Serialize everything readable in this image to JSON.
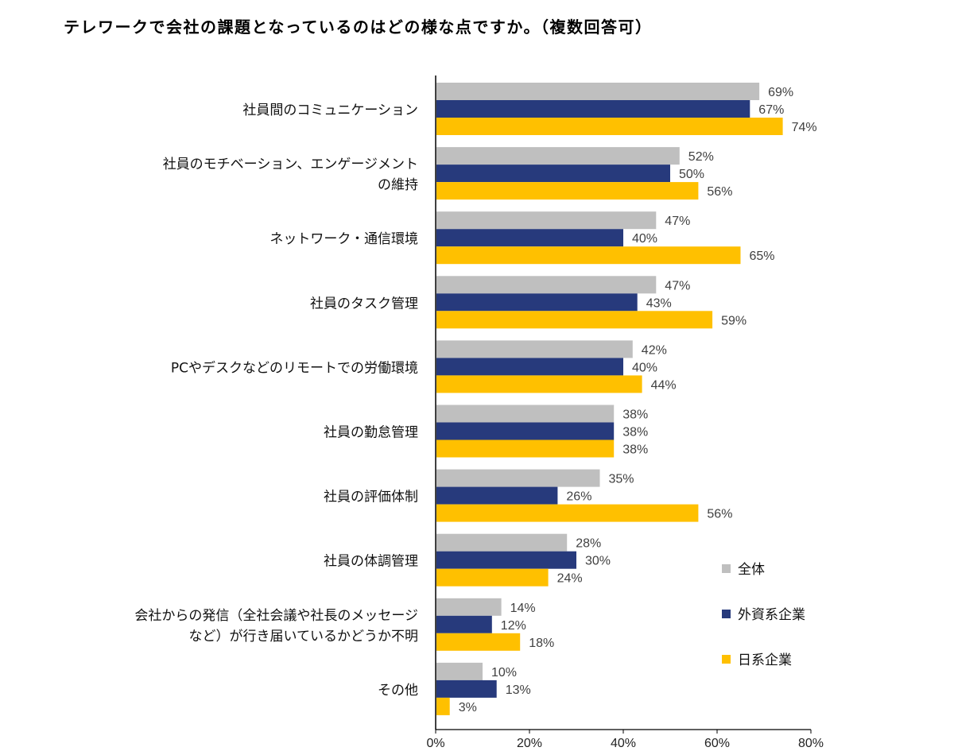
{
  "chart_data": {
    "type": "bar",
    "orientation": "horizontal",
    "title": "テレワークで会社の課題となっているのはどの様な点ですか。（複数回答可）",
    "categories": [
      [
        "社員間のコミュニケーション"
      ],
      [
        "社員のモチベーション、エンゲージメント",
        "の維持"
      ],
      [
        "ネットワーク・通信環境"
      ],
      [
        "社員のタスク管理"
      ],
      [
        "PCやデスクなどのリモートでの労働環境"
      ],
      [
        "社員の勤怠管理"
      ],
      [
        "社員の評価体制"
      ],
      [
        "社員の体調管理"
      ],
      [
        "会社からの発信（全社会議や社長のメッセージ",
        "など）が行き届いているかどうか不明"
      ],
      [
        "その他"
      ]
    ],
    "series": [
      {
        "name": "全体",
        "color": "#bfbfbf",
        "values": [
          69,
          52,
          47,
          47,
          42,
          38,
          35,
          28,
          14,
          10
        ]
      },
      {
        "name": "外資系企業",
        "color": "#273a7c",
        "values": [
          67,
          50,
          40,
          43,
          40,
          38,
          26,
          30,
          12,
          13
        ]
      },
      {
        "name": "日系企業",
        "color": "#ffc000",
        "values": [
          74,
          56,
          65,
          59,
          44,
          38,
          56,
          24,
          18,
          3
        ]
      }
    ],
    "value_suffix": "%",
    "xlim": [
      0,
      80
    ],
    "xticks": [
      "0%",
      "20%",
      "40%",
      "60%",
      "80%"
    ],
    "xlabel": "",
    "ylabel": "",
    "grid": false,
    "legend_position": "bottom-right"
  }
}
